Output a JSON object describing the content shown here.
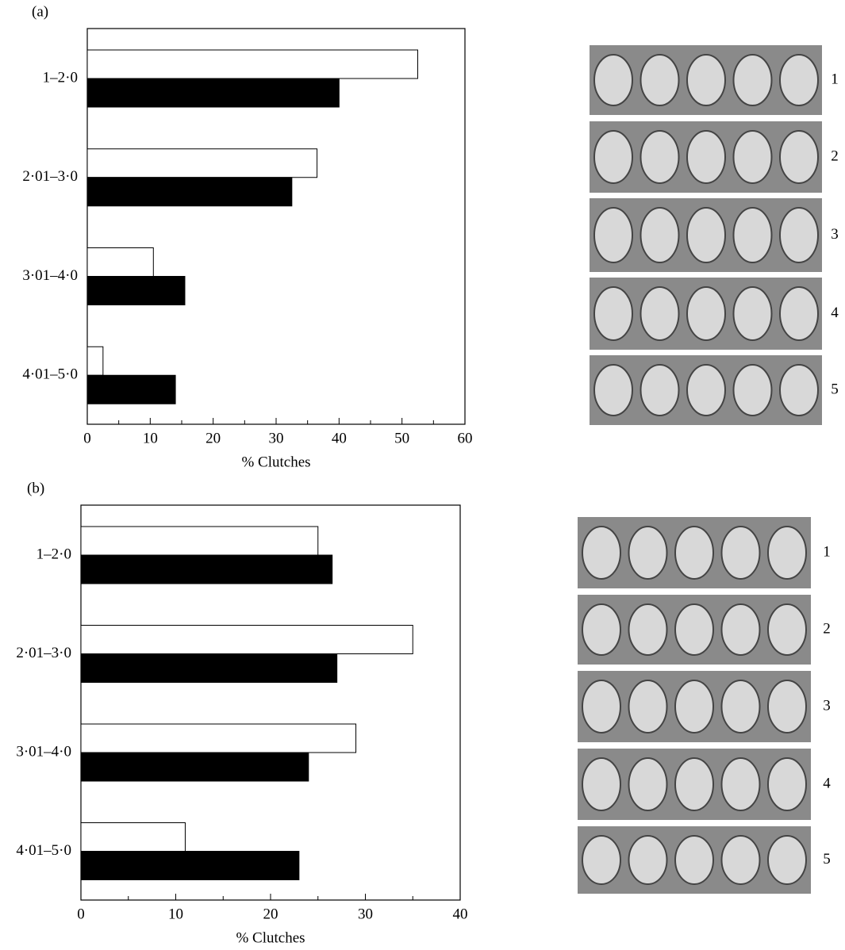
{
  "chart_data": [
    {
      "type": "hbar",
      "title": "(a)",
      "x_label": "% Clutches",
      "categories": [
        "1–2·0",
        "2·01–3·0",
        "3·01–4·0",
        "4·01–5·0"
      ],
      "series": [
        {
          "color": "#ffffff",
          "values": [
            52.5,
            36.5,
            10.5,
            2.5
          ]
        },
        {
          "color": "#000000",
          "values": [
            40,
            32.5,
            15.5,
            14
          ]
        }
      ],
      "xlim": [
        0,
        60
      ],
      "xticks": [
        0,
        10,
        20,
        30,
        40,
        50,
        60
      ],
      "xminorticks": [
        5,
        15,
        25,
        35,
        45,
        55
      ],
      "photo_labels": [
        "1",
        "2",
        "3",
        "4",
        "5"
      ]
    },
    {
      "type": "hbar",
      "title": "(b)",
      "x_label": "% Clutches",
      "categories": [
        "1–2·0",
        "2·01–3·0",
        "3·01–4·0",
        "4·01–5·0"
      ],
      "series": [
        {
          "color": "#ffffff",
          "values": [
            25,
            35,
            29,
            11
          ]
        },
        {
          "color": "#000000",
          "values": [
            26.5,
            27,
            24,
            23
          ]
        }
      ],
      "xlim": [
        0,
        40
      ],
      "xticks": [
        0,
        10,
        20,
        30,
        40
      ],
      "xminorticks": [
        5,
        15,
        25,
        35
      ],
      "photo_labels": [
        "1",
        "2",
        "3",
        "4",
        "5"
      ]
    }
  ]
}
